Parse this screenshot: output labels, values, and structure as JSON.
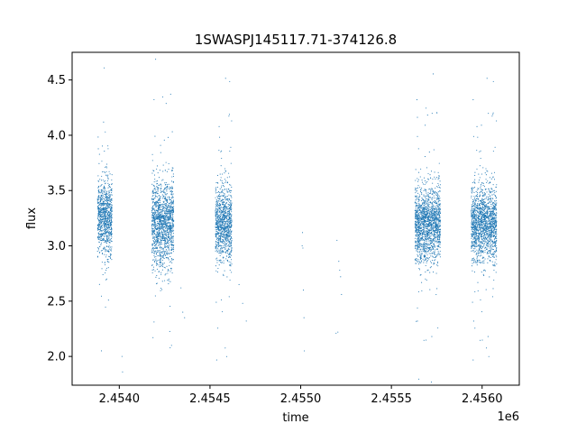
{
  "chart_data": {
    "type": "scatter",
    "title": "1SWASPJ145117.71-374126.8",
    "xlabel": "time",
    "ylabel": "flux",
    "x_offset_label": "1e6",
    "xlim": [
      2453740,
      2456205
    ],
    "ylim": [
      1.74,
      4.75
    ],
    "x_ticks": [
      2454000,
      2454500,
      2455000,
      2455500,
      2456000
    ],
    "x_tick_labels": [
      "2.4540",
      "2.4545",
      "2.4550",
      "2.4555",
      "2.4560"
    ],
    "y_ticks": [
      2.0,
      2.5,
      3.0,
      3.5,
      4.0,
      4.5
    ],
    "y_tick_labels": [
      "2.0",
      "2.5",
      "3.0",
      "3.5",
      "4.0",
      "4.5"
    ],
    "grid": false,
    "legend": "none",
    "point_color": "#1f77b4",
    "series": [
      {
        "clusters": [
          {
            "x_start": 2453880,
            "x_end": 2453960,
            "y_center": 3.25,
            "y_spread": 0.3,
            "count": 900
          },
          {
            "x_start": 2454180,
            "x_end": 2454300,
            "y_center": 3.2,
            "y_spread": 0.35,
            "count": 1400
          },
          {
            "x_start": 2454530,
            "x_end": 2454620,
            "y_center": 3.2,
            "y_spread": 0.3,
            "count": 1000
          },
          {
            "x_start": 2455630,
            "x_end": 2455770,
            "y_center": 3.2,
            "y_spread": 0.3,
            "count": 1600
          },
          {
            "x_start": 2455940,
            "x_end": 2456080,
            "y_center": 3.2,
            "y_spread": 0.3,
            "count": 1600
          }
        ],
        "sparse_points": [
          {
            "x": 2455010,
            "y": 3.12
          },
          {
            "x": 2455012,
            "y": 2.98
          },
          {
            "x": 2455015,
            "y": 2.6
          },
          {
            "x": 2455018,
            "y": 2.35
          },
          {
            "x": 2455020,
            "y": 2.05
          },
          {
            "x": 2455008,
            "y": 3.0
          },
          {
            "x": 2455200,
            "y": 3.05
          },
          {
            "x": 2455210,
            "y": 2.86
          },
          {
            "x": 2455215,
            "y": 2.78
          },
          {
            "x": 2455220,
            "y": 2.72
          },
          {
            "x": 2455225,
            "y": 2.56
          },
          {
            "x": 2455205,
            "y": 2.22
          },
          {
            "x": 2455195,
            "y": 2.21
          },
          {
            "x": 2454660,
            "y": 2.65
          },
          {
            "x": 2454680,
            "y": 2.48
          },
          {
            "x": 2454700,
            "y": 2.32
          },
          {
            "x": 2454015,
            "y": 2.0
          },
          {
            "x": 2454018,
            "y": 1.86
          },
          {
            "x": 2454350,
            "y": 2.4
          },
          {
            "x": 2454360,
            "y": 2.35
          },
          {
            "x": 2454340,
            "y": 2.62
          }
        ]
      }
    ]
  }
}
